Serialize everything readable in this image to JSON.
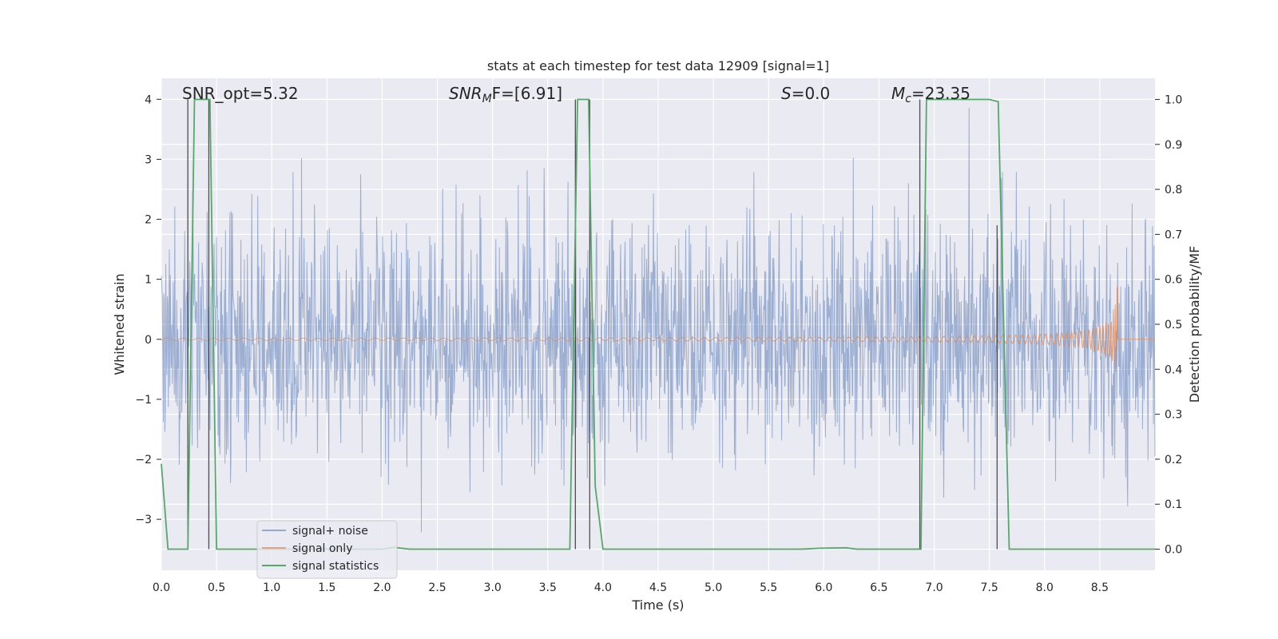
{
  "chart_data": {
    "type": "line",
    "title": "stats at each timestep for test data 12909 [signal=1]",
    "xlabel": "Time (s)",
    "ylabel_left": "Whitened strain",
    "ylabel_right": "Detection probability/MF",
    "xlim": [
      0.0,
      9.0
    ],
    "ylim_left": [
      -3.85,
      4.35
    ],
    "ylim_right": [
      -0.047,
      1.047
    ],
    "xticks": [
      "0.0",
      "0.5",
      "1.0",
      "1.5",
      "2.0",
      "2.5",
      "3.0",
      "3.5",
      "4.0",
      "4.5",
      "5.0",
      "5.5",
      "6.0",
      "6.5",
      "7.0",
      "7.5",
      "8.0",
      "8.5"
    ],
    "xtick_values": [
      0,
      0.5,
      1,
      1.5,
      2,
      2.5,
      3,
      3.5,
      4,
      4.5,
      5,
      5.5,
      6,
      6.5,
      7,
      7.5,
      8,
      8.5
    ],
    "yticks_left": [
      "4",
      "3",
      "2",
      "1",
      "0",
      "−1",
      "−2",
      "−3"
    ],
    "ytick_values_left": [
      4,
      3,
      2,
      1,
      0,
      -1,
      -2,
      -3
    ],
    "yticks_right": [
      "1.0",
      "0.9",
      "0.8",
      "0.7",
      "0.6",
      "0.5",
      "0.4",
      "0.3",
      "0.2",
      "0.1",
      "0.0"
    ],
    "ytick_values_right": [
      1.0,
      0.9,
      0.8,
      0.7,
      0.6,
      0.5,
      0.4,
      0.3,
      0.2,
      0.1,
      0.0
    ],
    "annotations": {
      "snr_opt": "SNR_opt=5.32",
      "snr_mf_prefix": "SNR",
      "snr_mf_sub": "M",
      "snr_mf_suffix": "F=[6.91]",
      "s_prefix": "S",
      "s_suffix": "=0.0",
      "mc_prefix": "M",
      "mc_sub": "c",
      "mc_suffix": "=23.35"
    },
    "legend": {
      "position": "lower-left",
      "entries": [
        "signal+ noise",
        "signal only",
        "signal statistics"
      ]
    },
    "colors": {
      "background": "#eaeaf2",
      "grid": "#ffffff",
      "noise": "#4c72b0",
      "signal": "#dd8452",
      "stats": "#55a868",
      "vlines": "#333333"
    },
    "series": [
      {
        "name": "signal+ noise",
        "description_envelope": {
          "typical_amplitude": 1.6,
          "max": 4.0,
          "min": -3.65
        }
      },
      {
        "name": "signal only",
        "chirp": {
          "end_time": 8.66,
          "peak_amplitude": 1.05
        }
      },
      {
        "name": "signal statistics",
        "x": [
          0.0,
          0.06,
          0.24,
          0.3,
          0.44,
          0.5,
          1.0,
          1.5,
          2.0,
          2.1,
          2.25,
          2.5,
          3.0,
          3.5,
          3.7,
          3.77,
          3.87,
          3.93,
          4.0,
          5.0,
          5.8,
          5.95,
          6.2,
          6.3,
          6.88,
          6.93,
          7.5,
          7.58,
          7.68,
          7.78,
          8.0,
          9.0
        ],
        "y": [
          0.19,
          0.0,
          0.0,
          1.0,
          1.0,
          0.0,
          0.0,
          0.0,
          0.0,
          0.004,
          0.0,
          0.0,
          0.0,
          0.0,
          0.0,
          1.0,
          1.0,
          0.14,
          0.0,
          0.0,
          0.0,
          0.002,
          0.003,
          0.0,
          0.0,
          1.0,
          1.0,
          0.995,
          0.0,
          0.0,
          0.0,
          0.0
        ]
      }
    ],
    "vertical_markers": [
      {
        "x": 0.24,
        "y_top": 1.0
      },
      {
        "x": 0.43,
        "y_top": 1.0
      },
      {
        "x": 3.75,
        "y_top": 1.0
      },
      {
        "x": 3.88,
        "y_top": 1.0
      },
      {
        "x": 6.87,
        "y_top": 1.0
      },
      {
        "x": 7.57,
        "y_top": 0.72
      }
    ]
  }
}
